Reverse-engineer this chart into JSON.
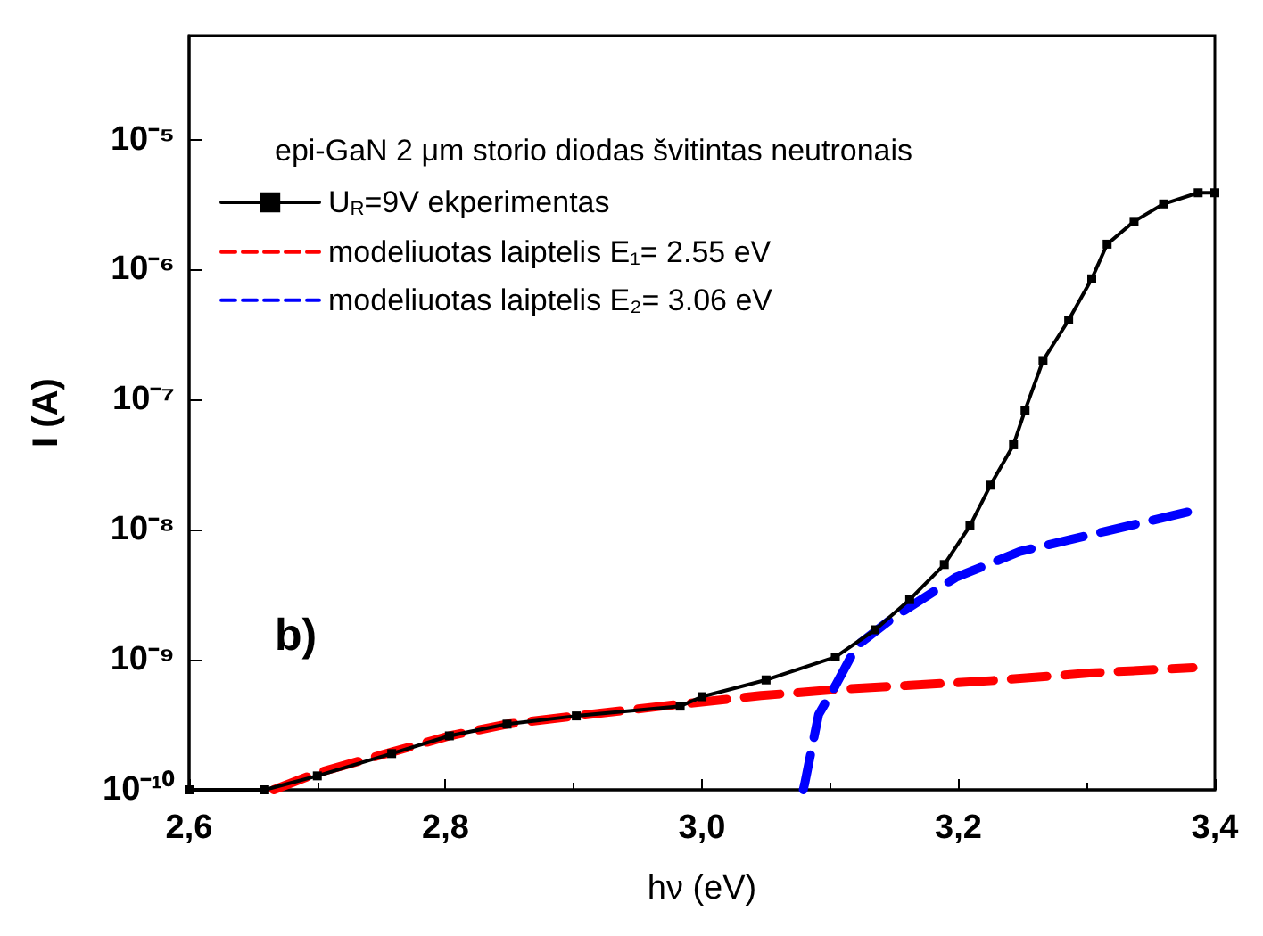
{
  "chart_data": {
    "type": "line",
    "xlabel": "hν (eV)",
    "ylabel": "I (A)",
    "legend_title": "epi-GaN 2 μm storio diodas švitintas neutronais",
    "annotations": [
      "b)"
    ],
    "log": "y",
    "grid": false,
    "legend": "top left",
    "xlim": [
      2.6,
      3.4
    ],
    "xticks": [
      {
        "value": 2.6,
        "label": "2,6"
      },
      {
        "value": 2.8,
        "label": "2,8"
      },
      {
        "value": 3.0,
        "label": "3,0"
      },
      {
        "value": 3.2,
        "label": "3,2"
      },
      {
        "value": 3.4,
        "label": "3,4"
      }
    ],
    "ylim": [
      1e-10,
      6.3e-05
    ],
    "yticks": [
      {
        "value": 1e-10,
        "label": "10⁻¹⁰"
      },
      {
        "value": 1e-09,
        "label": "10⁻⁹"
      },
      {
        "value": 1e-08,
        "label": "10⁻⁸"
      },
      {
        "value": 1e-07,
        "label": "10⁻⁷"
      },
      {
        "value": 1e-06,
        "label": "10⁻⁶"
      },
      {
        "value": 1e-05,
        "label": "10⁻⁵"
      }
    ],
    "series": [
      {
        "name": "U$_{R}$=9V ekperimentas",
        "color": "#000000",
        "marker": "square",
        "line_style": "solid",
        "x": [
          2.6,
          2.659,
          2.7,
          2.758,
          2.803,
          2.848,
          2.902,
          2.983,
          3.0,
          3.05,
          3.104,
          3.135,
          3.162,
          3.189,
          3.209,
          3.225,
          3.243,
          3.252,
          3.266,
          3.286,
          3.304,
          3.316,
          3.337,
          3.36,
          3.387,
          3.4
        ],
        "values": [
          1e-10,
          1e-10,
          1.28e-10,
          1.9e-10,
          2.6e-10,
          3.2e-10,
          3.7e-10,
          4.4e-10,
          5.2e-10,
          7e-10,
          1.05e-09,
          1.7e-09,
          2.9e-09,
          5.4e-09,
          1.07e-08,
          2.2e-08,
          4.5e-08,
          8.3e-08,
          2e-07,
          4.1e-07,
          8.5e-07,
          1.57e-06,
          2.35e-06,
          3.2e-06,
          3.9e-06,
          3.9e-06
        ]
      },
      {
        "name": "modeliuotas laiptelis E₁= 2.55 eV",
        "color": "#ff0000",
        "marker": "none",
        "line_style": "dashed",
        "x": [
          2.666,
          2.7,
          2.758,
          2.803,
          2.848,
          2.902,
          2.969,
          3.046,
          3.104,
          3.225,
          3.302,
          3.383
        ],
        "values": [
          1e-10,
          1.35e-10,
          1.95e-10,
          2.6e-10,
          3.2e-10,
          3.7e-10,
          4.4e-10,
          5.3e-10,
          5.9e-10,
          6.9e-10,
          7.9e-10,
          8.7e-10
        ]
      },
      {
        "name": "modeliuotas laiptelis E₂= 3.06 eV",
        "color": "#0000ff",
        "marker": "none",
        "line_style": "dashed",
        "x": [
          3.079,
          3.08,
          3.091,
          3.104,
          3.121,
          3.149,
          3.198,
          3.248,
          3.316,
          3.383
        ],
        "values": [
          1e-10,
          1.1e-10,
          3.8e-10,
          6.3e-10,
          1.29e-09,
          2.1e-09,
          4.3e-09,
          6.8e-09,
          9.8e-09,
          1.4e-08
        ]
      }
    ]
  }
}
